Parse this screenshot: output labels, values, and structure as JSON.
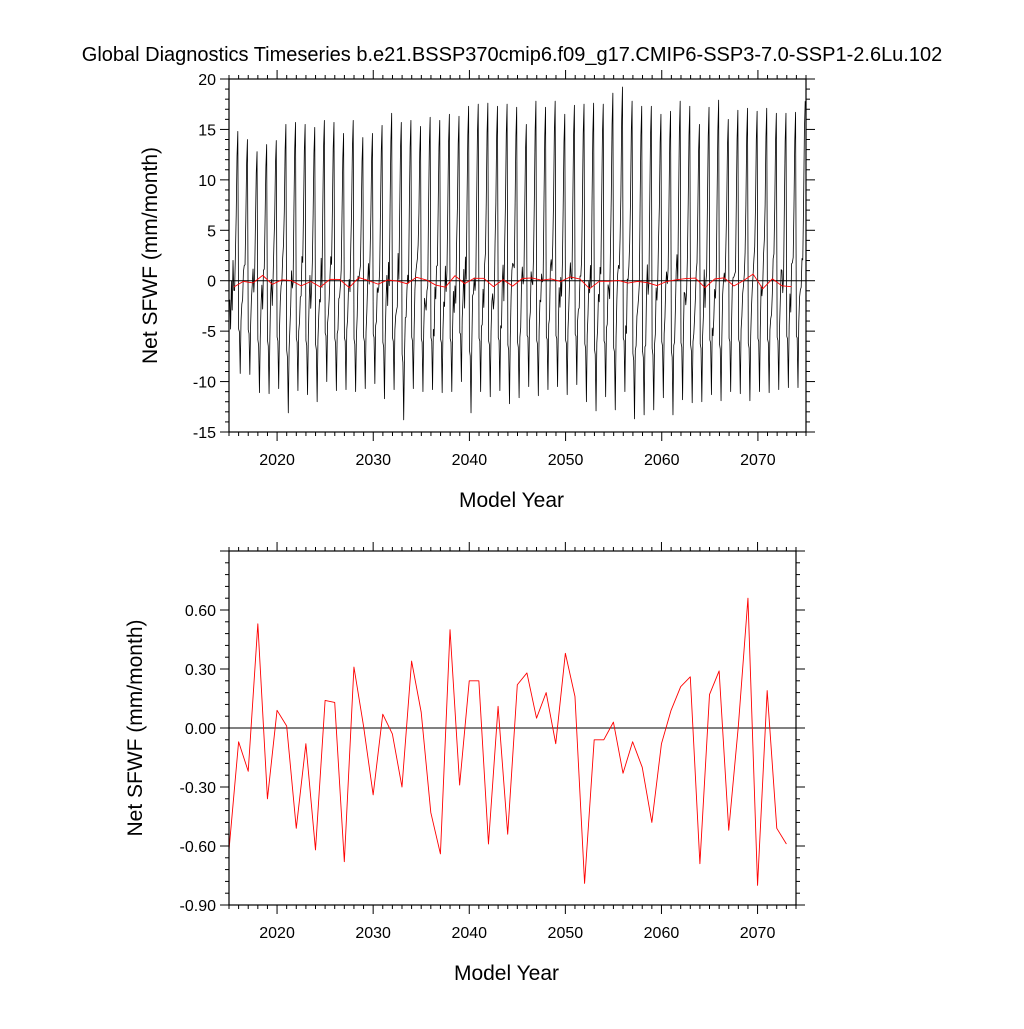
{
  "page": {
    "title": "Global Diagnostics Timeseries b.e21.BSSP370cmip6.f09_g17.CMIP6-SSP3-7.0-SSP1-2.6Lu.102"
  },
  "colors": {
    "monthly_line": "#000000",
    "annual_line": "#ff0000",
    "zero_line": "#000000",
    "frame": "#000000"
  },
  "chart_data": [
    {
      "type": "line",
      "xlabel": "Model Year",
      "ylabel": "Net SFWF (mm/month)",
      "xlim": [
        2015,
        2075
      ],
      "ylim": [
        -15,
        20
      ],
      "x_ticks": [
        2020,
        2030,
        2040,
        2050,
        2060,
        2070
      ],
      "x_tick_labels": [
        "2020",
        "2030",
        "2040",
        "2050",
        "2060",
        "2070"
      ],
      "y_ticks": [
        -15,
        -10,
        -5,
        0,
        5,
        10,
        15,
        20
      ],
      "y_tick_labels": [
        "-15",
        "-10",
        "-5",
        "0",
        "5",
        "10",
        "15",
        "20"
      ],
      "reference_line": 0,
      "series": [
        {
          "kind": "monthly",
          "x_start": 2015.0,
          "x_step_months": 1,
          "annual_peak_max": [
            14.8,
            14.0,
            12.8,
            13.5,
            13.9,
            15.5,
            15.7,
            15.5,
            15.2,
            15.9,
            15.7,
            14.6,
            15.9,
            14.2,
            14.6,
            15.4,
            16.6,
            15.7,
            15.9,
            15.3,
            16.2,
            15.9,
            16.5,
            16.3,
            17.3,
            17.5,
            17.6,
            17.3,
            17.5,
            17.2,
            15.5,
            17.8,
            17.2,
            17.8,
            16.5,
            17.4,
            17.5,
            17.6,
            17.5,
            18.6,
            19.2,
            17.8,
            17.3,
            17.3,
            16.5,
            16.8,
            17.8,
            17.3,
            15.5,
            17.2,
            17.9,
            16.0,
            16.9,
            17.1,
            16.8,
            17.1,
            16.6,
            16.6,
            16.7,
            17.8
          ],
          "annual_trough_min": [
            -4.8,
            -9.2,
            -9.3,
            -11.1,
            -11.2,
            -10.7,
            -13.1,
            -10.9,
            -11.3,
            -12.0,
            -10.0,
            -10.9,
            -10.8,
            -11.0,
            -10.7,
            -10.2,
            -11.7,
            -10.8,
            -13.8,
            -10.7,
            -11.0,
            -10.8,
            -11.1,
            -11.0,
            -10.0,
            -13.1,
            -11.0,
            -11.5,
            -10.9,
            -12.2,
            -11.6,
            -10.5,
            -11.4,
            -10.8,
            -10.5,
            -11.3,
            -10.3,
            -12.0,
            -12.9,
            -11.5,
            -12.8,
            -11.0,
            -13.7,
            -13.3,
            -12.8,
            -11.6,
            -13.3,
            -11.8,
            -12.1,
            -12.0,
            -11.3,
            -11.9,
            -11.0,
            -11.2,
            -11.9,
            -11.0,
            -11.1,
            -10.8,
            -10.6,
            -10.6
          ]
        },
        {
          "kind": "annual",
          "x_start": 2015.5,
          "x_step": 1,
          "values": [
            -0.62,
            -0.07,
            -0.22,
            0.53,
            -0.36,
            0.09,
            0.01,
            -0.51,
            -0.08,
            -0.62,
            0.14,
            0.13,
            -0.68,
            0.31,
            0.01,
            -0.34,
            0.07,
            -0.03,
            -0.3,
            0.34,
            0.08,
            -0.43,
            -0.64,
            0.5,
            -0.29,
            0.24,
            0.24,
            -0.59,
            0.11,
            -0.54,
            0.22,
            0.28,
            0.05,
            0.18,
            -0.08,
            0.38,
            0.16,
            -0.79,
            -0.06,
            -0.06,
            0.03,
            -0.23,
            -0.07,
            -0.2,
            -0.48,
            -0.08,
            0.09,
            0.21,
            0.26,
            -0.69,
            0.17,
            0.29,
            -0.52,
            0.01,
            0.66,
            -0.8,
            0.19,
            -0.51,
            -0.59
          ]
        }
      ]
    },
    {
      "type": "line",
      "xlabel": "Model Year",
      "ylabel": "Net SFWF (mm/month)",
      "xlim": [
        2015,
        2074
      ],
      "ylim": [
        -0.9,
        0.9
      ],
      "x_ticks": [
        2020,
        2030,
        2040,
        2050,
        2060,
        2070
      ],
      "x_tick_labels": [
        "2020",
        "2030",
        "2040",
        "2050",
        "2060",
        "2070"
      ],
      "y_ticks": [
        -0.9,
        -0.6,
        -0.3,
        0.0,
        0.3,
        0.6
      ],
      "y_tick_labels": [
        "-0.90",
        "-0.60",
        "-0.30",
        "0.00",
        "0.30",
        "0.60"
      ],
      "reference_line": 0,
      "series": [
        {
          "kind": "annual",
          "x_start": 2015.0,
          "x_step": 1,
          "values": [
            -0.62,
            -0.07,
            -0.22,
            0.53,
            -0.36,
            0.09,
            0.01,
            -0.51,
            -0.08,
            -0.62,
            0.14,
            0.13,
            -0.68,
            0.31,
            0.01,
            -0.34,
            0.07,
            -0.03,
            -0.3,
            0.34,
            0.08,
            -0.43,
            -0.64,
            0.5,
            -0.29,
            0.24,
            0.24,
            -0.59,
            0.11,
            -0.54,
            0.22,
            0.28,
            0.05,
            0.18,
            -0.08,
            0.38,
            0.16,
            -0.79,
            -0.06,
            -0.06,
            0.03,
            -0.23,
            -0.07,
            -0.2,
            -0.48,
            -0.08,
            0.09,
            0.21,
            0.26,
            -0.69,
            0.17,
            0.29,
            -0.52,
            0.01,
            0.66,
            -0.8,
            0.19,
            -0.51,
            -0.59
          ]
        }
      ]
    }
  ]
}
